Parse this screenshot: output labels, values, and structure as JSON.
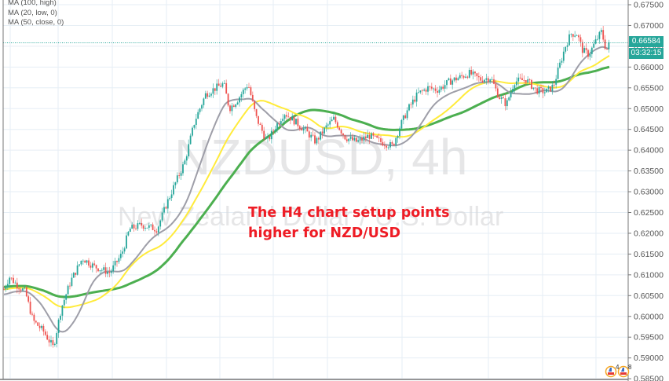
{
  "chart_data": {
    "type": "candlestick",
    "title": "NZDUSD, 4h",
    "subtitle": "New Zealand Dollar / U.S. Dollar",
    "symbol": "NZDUSD",
    "timeframe": "4h",
    "annotation": [
      "The H4 chart setup points",
      "higher for NZD/USD"
    ],
    "legend": [
      {
        "label": "MA (100, high)",
        "color": "#4caf50"
      },
      {
        "label": "MA (20, low, 0)",
        "color": "#9e9ea8"
      },
      {
        "label": "MA (50, close, 0)",
        "color": "#ffeb3b"
      }
    ],
    "y_axis": {
      "position": "right",
      "ticks": [
        "0.67500",
        "0.67000",
        "0.66500",
        "0.66000",
        "0.65500",
        "0.65000",
        "0.64500",
        "0.64000",
        "0.63500",
        "0.63000",
        "0.62500",
        "0.62000",
        "0.61500",
        "0.61000",
        "0.60500",
        "0.60000",
        "0.59500",
        "0.59000",
        "0.58500"
      ],
      "ylim": [
        0.585,
        0.675
      ]
    },
    "grid": true,
    "last_price": "0.66584",
    "countdown": "03:32:15",
    "colors": {
      "up": "#26a69a",
      "down": "#ef5350",
      "last_price_bg": "#26a69a",
      "annotation": "#ee1c25"
    },
    "price_path": [
      [
        5,
        0.6065
      ],
      [
        12,
        0.6095
      ],
      [
        22,
        0.6075
      ],
      [
        32,
        0.606
      ],
      [
        42,
        0.599
      ],
      [
        55,
        0.5965
      ],
      [
        68,
        0.5925
      ],
      [
        78,
        0.602
      ],
      [
        90,
        0.6085
      ],
      [
        105,
        0.614
      ],
      [
        120,
        0.612
      ],
      [
        140,
        0.6105
      ],
      [
        155,
        0.615
      ],
      [
        165,
        0.621
      ],
      [
        180,
        0.622
      ],
      [
        200,
        0.621
      ],
      [
        212,
        0.627
      ],
      [
        222,
        0.6315
      ],
      [
        235,
        0.637
      ],
      [
        248,
        0.647
      ],
      [
        262,
        0.6535
      ],
      [
        275,
        0.655
      ],
      [
        285,
        0.656
      ],
      [
        292,
        0.65
      ],
      [
        302,
        0.652
      ],
      [
        316,
        0.656
      ],
      [
        326,
        0.648
      ],
      [
        340,
        0.642
      ],
      [
        352,
        0.646
      ],
      [
        362,
        0.649
      ],
      [
        375,
        0.647
      ],
      [
        390,
        0.6445
      ],
      [
        402,
        0.642
      ],
      [
        415,
        0.6455
      ],
      [
        425,
        0.6475
      ],
      [
        440,
        0.643
      ],
      [
        455,
        0.642
      ],
      [
        470,
        0.6435
      ],
      [
        485,
        0.642
      ],
      [
        500,
        0.641
      ],
      [
        510,
        0.646
      ],
      [
        520,
        0.65
      ],
      [
        532,
        0.6535
      ],
      [
        545,
        0.655
      ],
      [
        558,
        0.6545
      ],
      [
        572,
        0.6565
      ],
      [
        585,
        0.6575
      ],
      [
        598,
        0.6585
      ],
      [
        612,
        0.657
      ],
      [
        625,
        0.6575
      ],
      [
        635,
        0.653
      ],
      [
        645,
        0.651
      ],
      [
        655,
        0.6565
      ],
      [
        670,
        0.657
      ],
      [
        682,
        0.6545
      ],
      [
        695,
        0.654
      ],
      [
        705,
        0.6555
      ],
      [
        712,
        0.66
      ],
      [
        720,
        0.665
      ],
      [
        727,
        0.668
      ],
      [
        735,
        0.668
      ],
      [
        742,
        0.664
      ],
      [
        750,
        0.663
      ],
      [
        758,
        0.666
      ],
      [
        766,
        0.6685
      ],
      [
        772,
        0.664
      ],
      [
        777,
        0.6658
      ]
    ]
  }
}
